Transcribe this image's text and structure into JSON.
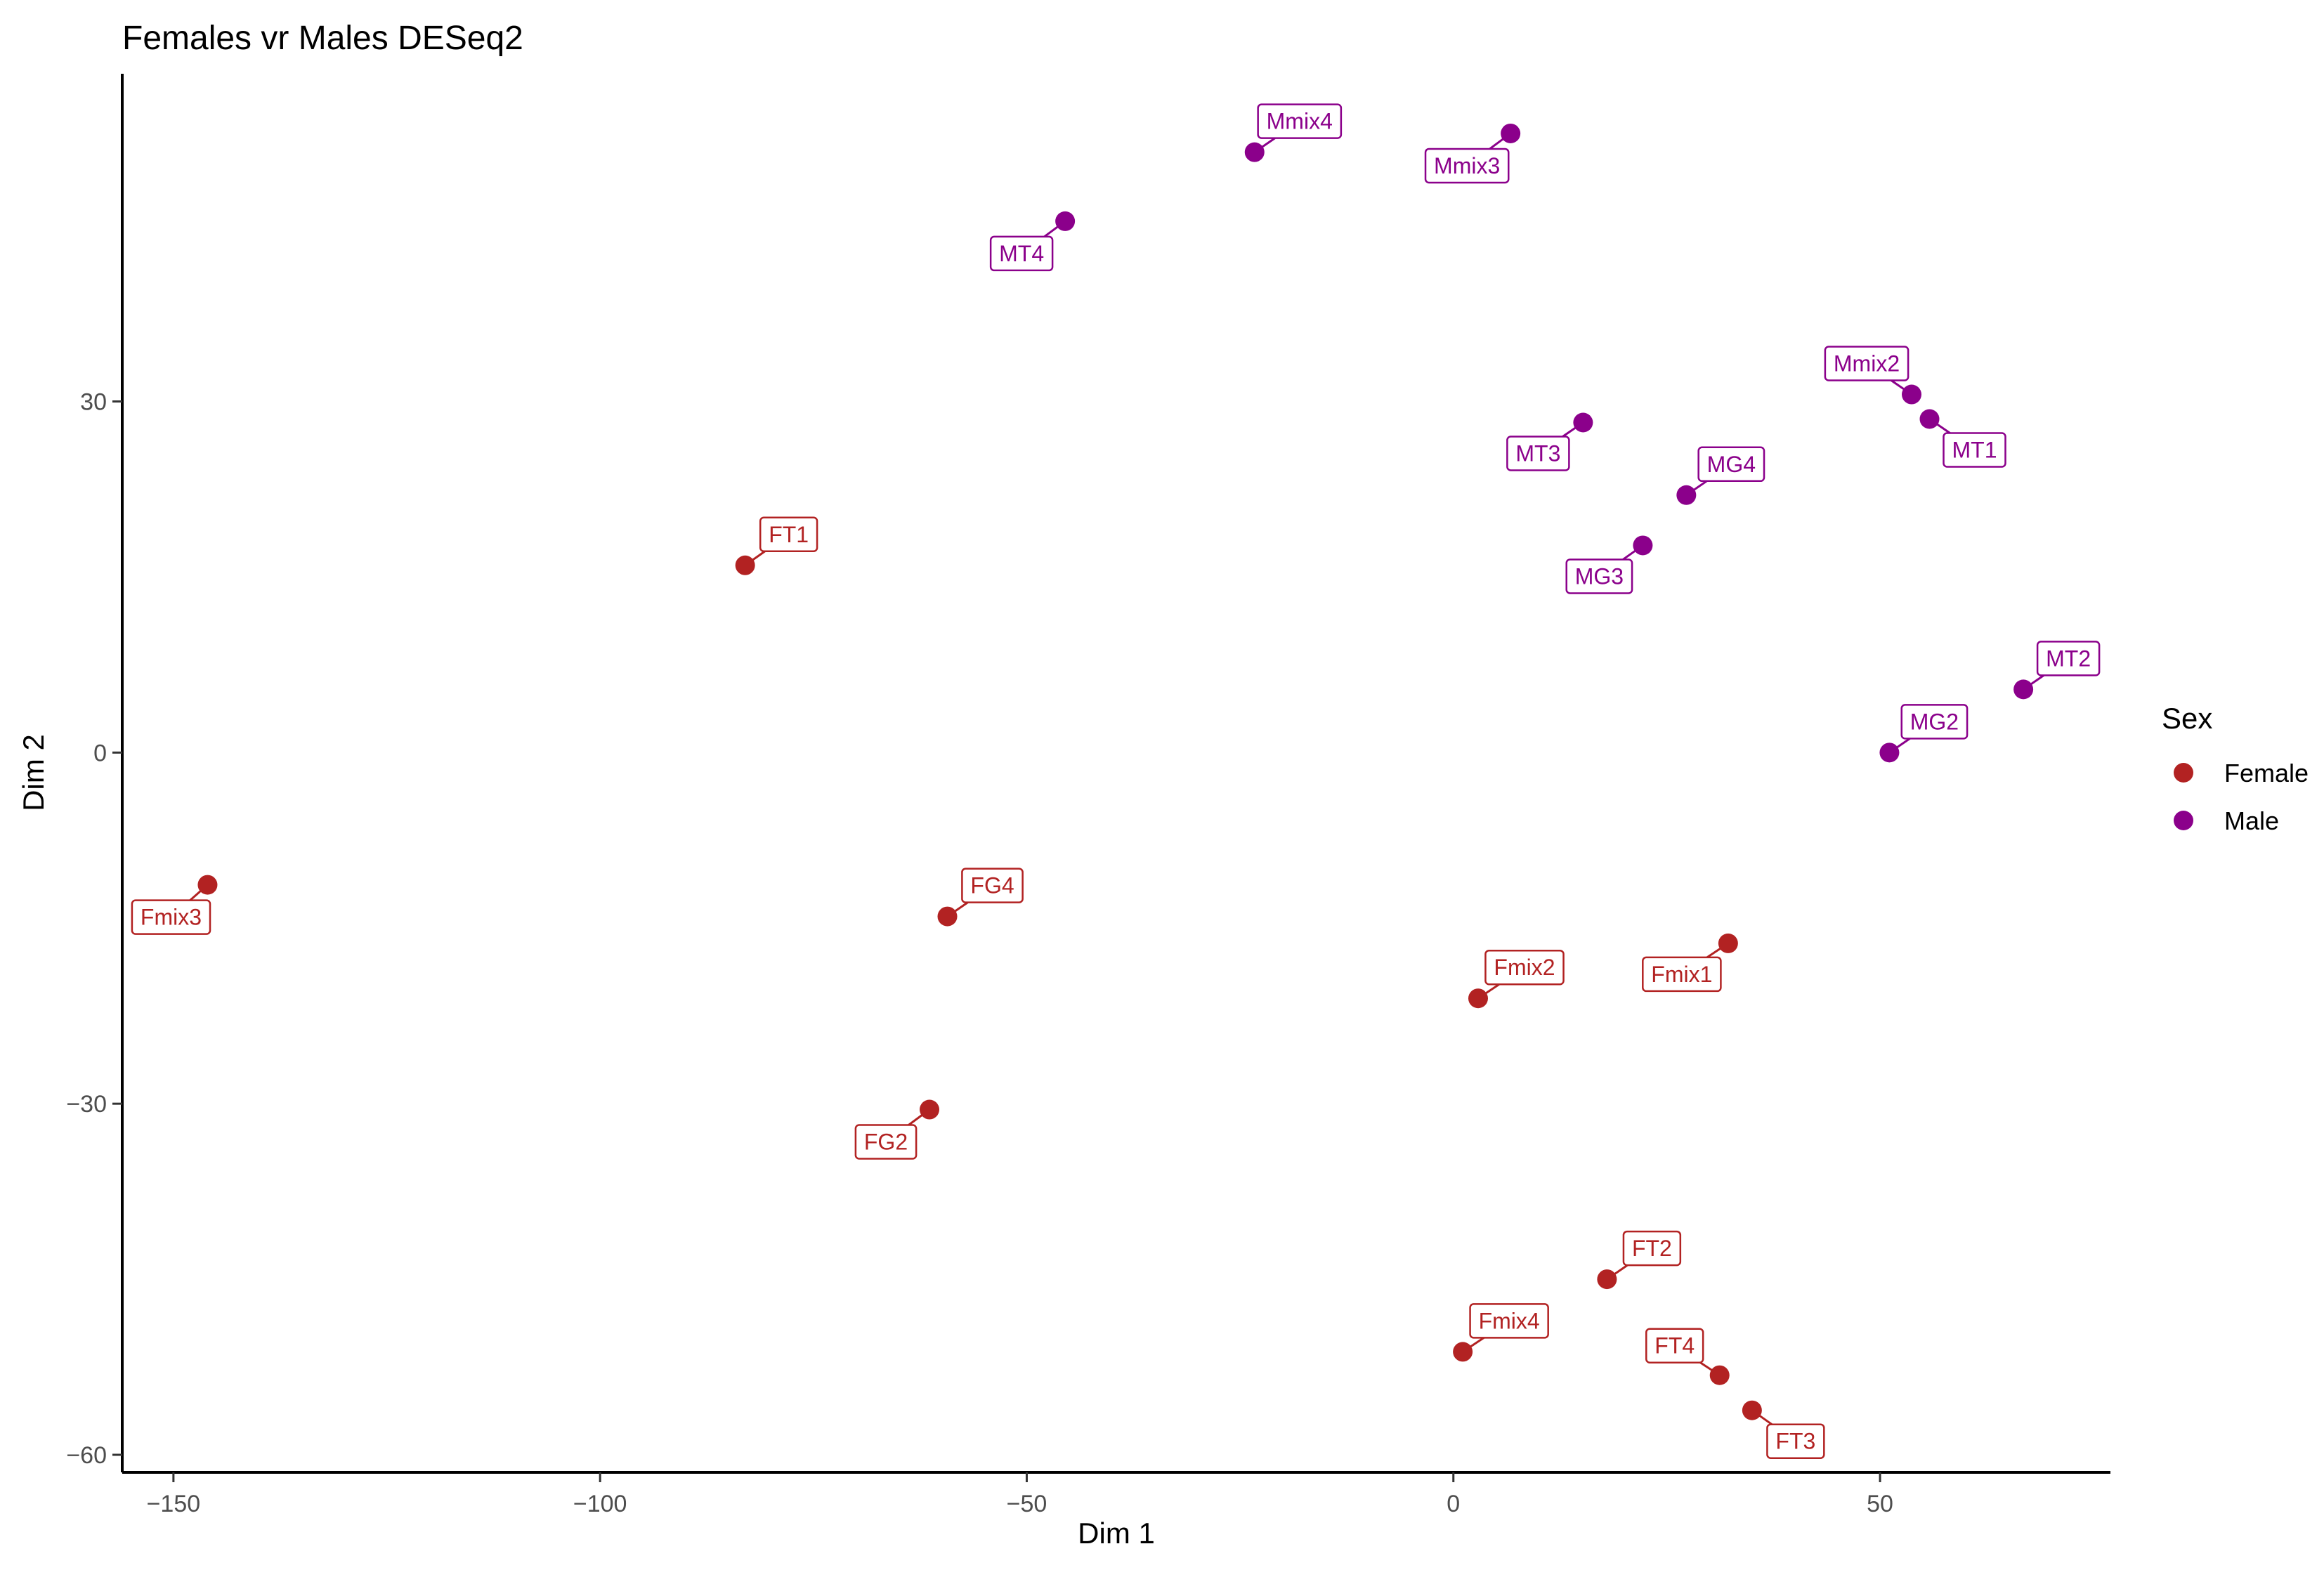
{
  "chart_data": {
    "type": "scatter",
    "title": "Females vr Males DESeq2",
    "xlabel": "Dim 1",
    "ylabel": "Dim 2",
    "xlim": [
      -156,
      77
    ],
    "ylim": [
      -61.5,
      58
    ],
    "xticks": [
      -150,
      -100,
      -50,
      0,
      50
    ],
    "yticks": [
      -60,
      -30,
      0,
      30
    ],
    "xtick_labels": [
      "−150",
      "−100",
      "−50",
      "0",
      "50"
    ],
    "ytick_labels": [
      "−60",
      "−30",
      "0",
      "30"
    ],
    "grid": false,
    "legend": {
      "title": "Sex",
      "position": "right",
      "entries": [
        {
          "name": "Female",
          "color": "#b22222"
        },
        {
          "name": "Male",
          "color": "#8b008b"
        }
      ]
    },
    "series": [
      {
        "name": "Female",
        "color": "#b22222",
        "points": [
          {
            "label": "FT1",
            "x": -83,
            "y": 16
          },
          {
            "label": "Fmix3",
            "x": -146,
            "y": -11.3
          },
          {
            "label": "FG4",
            "x": -59.3,
            "y": -14
          },
          {
            "label": "FG2",
            "x": -61.4,
            "y": -30.5
          },
          {
            "label": "Fmix2",
            "x": 2.9,
            "y": -21
          },
          {
            "label": "Fmix1",
            "x": 32.2,
            "y": -16.3
          },
          {
            "label": "FT2",
            "x": 18,
            "y": -45
          },
          {
            "label": "Fmix4",
            "x": 1.1,
            "y": -51.2
          },
          {
            "label": "FT4",
            "x": 31.2,
            "y": -53.2
          },
          {
            "label": "FT3",
            "x": 35,
            "y": -56.2
          }
        ]
      },
      {
        "name": "Male",
        "color": "#8b008b",
        "points": [
          {
            "label": "Mmix4",
            "x": -23.3,
            "y": 51.3
          },
          {
            "label": "Mmix3",
            "x": 6.7,
            "y": 52.9
          },
          {
            "label": "MT4",
            "x": -45.5,
            "y": 45.4
          },
          {
            "label": "Mmix2",
            "x": 53.7,
            "y": 30.6
          },
          {
            "label": "MT1",
            "x": 55.8,
            "y": 28.5
          },
          {
            "label": "MT3",
            "x": 15.2,
            "y": 28.2
          },
          {
            "label": "MG4",
            "x": 27.3,
            "y": 22
          },
          {
            "label": "MG3",
            "x": 22.2,
            "y": 17.7
          },
          {
            "label": "MT2",
            "x": 66.8,
            "y": 5.4
          },
          {
            "label": "MG2",
            "x": 51.1,
            "y": 0
          }
        ]
      }
    ]
  }
}
